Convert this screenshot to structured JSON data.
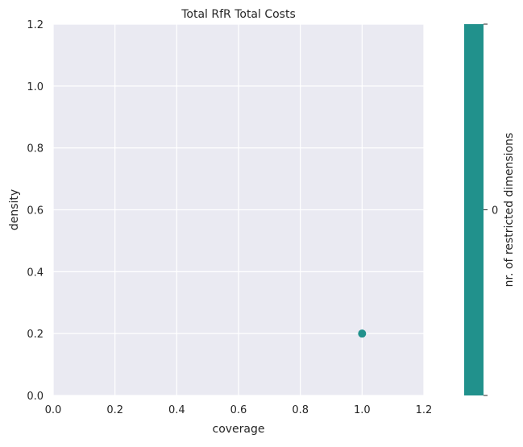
{
  "chart_data": {
    "type": "scatter",
    "title": "Total RfR Total Costs",
    "xlabel": "coverage",
    "ylabel": "density",
    "xlim": [
      0.0,
      1.2
    ],
    "ylim": [
      0.0,
      1.2
    ],
    "xticks": [
      "0.0",
      "0.2",
      "0.4",
      "0.6",
      "0.8",
      "1.0",
      "1.2"
    ],
    "yticks": [
      "0.0",
      "0.2",
      "0.4",
      "0.6",
      "0.8",
      "1.0",
      "1.2"
    ],
    "grid": true,
    "points": [
      {
        "x": 1.0,
        "y": 0.2,
        "restricted_dimensions": 0
      }
    ],
    "colorbar": {
      "label": "nr. of restricted dimensions",
      "ticks": [
        "0"
      ],
      "color": "#21918c"
    },
    "colors": {
      "plot_background": "#eaeaf2",
      "grid": "#ffffff",
      "point": "#21918c"
    }
  }
}
